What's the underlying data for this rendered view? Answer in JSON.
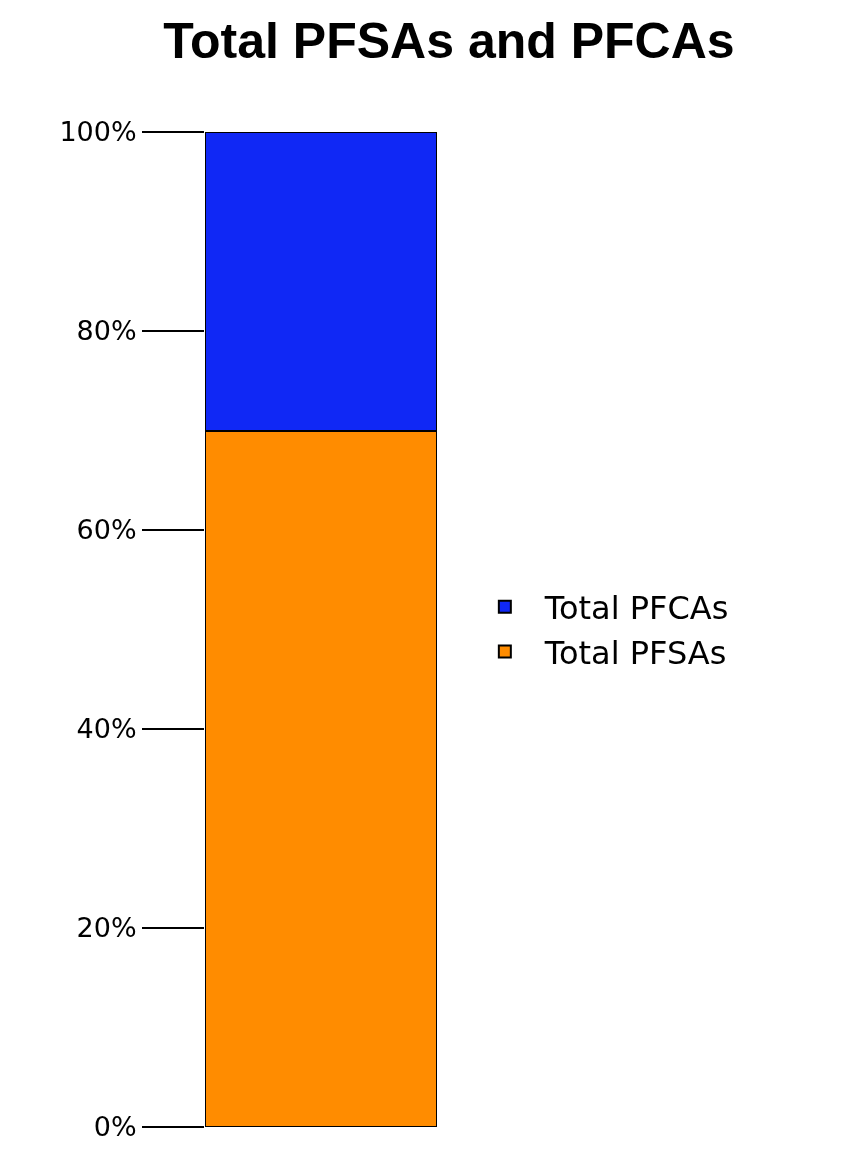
{
  "chart_data": {
    "type": "bar",
    "title": "Total PFSAs and PFCAs",
    "categories": [
      null
    ],
    "stacked": true,
    "series": [
      {
        "name": "Total PFSAs",
        "color": "#ff8c00",
        "values": [
          70
        ]
      },
      {
        "name": "Total PFCAs",
        "color": "#1028f5",
        "values": [
          30
        ]
      }
    ],
    "ylim": [
      0,
      100
    ],
    "yticks": [
      {
        "value": 0,
        "label": "0%"
      },
      {
        "value": 20,
        "label": "20%"
      },
      {
        "value": 40,
        "label": "40%"
      },
      {
        "value": 60,
        "label": "60%"
      },
      {
        "value": 80,
        "label": "80%"
      },
      {
        "value": 100,
        "label": "100%"
      }
    ],
    "legend": "right",
    "tick_labels": "y"
  }
}
